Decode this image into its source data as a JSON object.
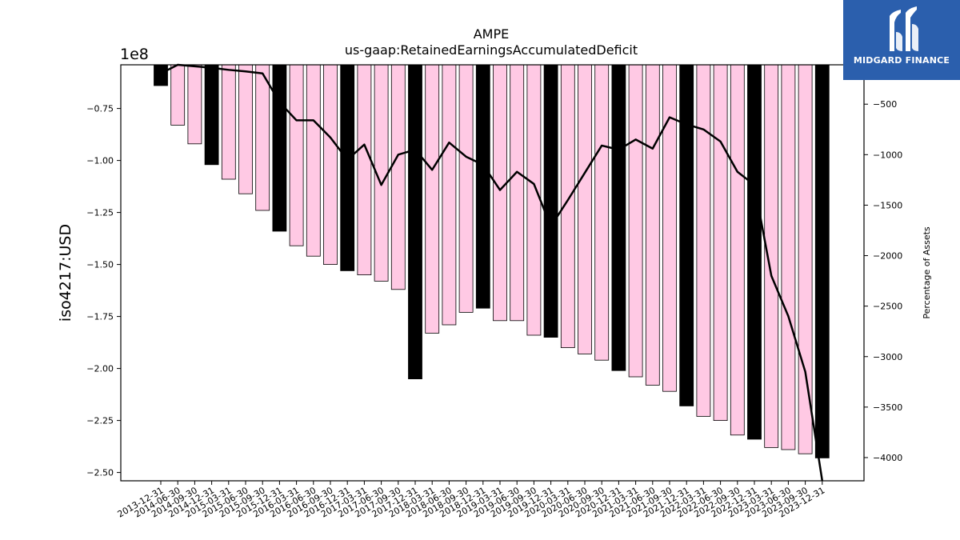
{
  "chart_data": {
    "type": "bar",
    "title": "AMPE",
    "subtitle": "us-gaap:RetainedEarningsAccumulatedDeficit",
    "ylabel": "iso4217:USD",
    "y_offset_label": "1e8",
    "y2label": "Percentage of Assets",
    "ylim": [
      -2.54,
      -0.54
    ],
    "y2lim": [
      -4230,
      -110
    ],
    "yticks": [
      -0.75,
      -1.0,
      -1.25,
      -1.5,
      -1.75,
      -2.0,
      -2.25,
      -2.5
    ],
    "y2ticks": [
      -500,
      -1000,
      -1500,
      -2000,
      -2500,
      -3000,
      -3500,
      -4000
    ],
    "categories": [
      "2013-12-31",
      "2014-06-30",
      "2014-09-30",
      "2014-12-31",
      "2015-03-31",
      "2015-06-30",
      "2015-09-30",
      "2015-12-31",
      "2016-03-31",
      "2016-06-30",
      "2016-09-30",
      "2016-12-31",
      "2017-03-31",
      "2017-06-30",
      "2017-09-30",
      "2017-12-31",
      "2018-03-31",
      "2018-06-30",
      "2018-09-30",
      "2018-12-31",
      "2019-03-31",
      "2019-06-30",
      "2019-09-30",
      "2019-12-31",
      "2020-03-31",
      "2020-06-30",
      "2020-09-30",
      "2020-12-31",
      "2021-03-31",
      "2021-06-30",
      "2021-09-30",
      "2021-12-31",
      "2022-03-31",
      "2022-06-30",
      "2022-09-30",
      "2022-12-31",
      "2023-03-31",
      "2023-06-30",
      "2023-09-30",
      "2023-12-31"
    ],
    "series": [
      {
        "type": "bar",
        "values": [
          -0.64,
          -0.83,
          -0.92,
          -1.02,
          -1.09,
          -1.16,
          -1.24,
          -1.34,
          -1.41,
          -1.46,
          -1.5,
          -1.53,
          -1.55,
          -1.58,
          -1.62,
          -2.05,
          -1.83,
          -1.79,
          -1.73,
          -1.71,
          -1.77,
          -1.77,
          -1.84,
          -1.85,
          -1.9,
          -1.93,
          -1.96,
          -2.01,
          -2.04,
          -2.08,
          -2.11,
          -2.18,
          -2.23,
          -2.25,
          -2.32,
          -2.34,
          -2.38,
          -2.39,
          -2.41,
          -2.43
        ],
        "highlight_color": "#000000",
        "base_color": "#ffc9e4",
        "highlight": [
          true,
          false,
          false,
          true,
          false,
          false,
          false,
          true,
          false,
          false,
          false,
          true,
          false,
          false,
          false,
          true,
          false,
          false,
          false,
          true,
          false,
          false,
          false,
          true,
          false,
          false,
          false,
          true,
          false,
          false,
          false,
          true,
          false,
          false,
          false,
          true,
          false,
          false,
          false,
          true
        ]
      },
      {
        "type": "line",
        "axis": "right",
        "color": "#000000",
        "values": [
          -195,
          -110,
          -125,
          -140,
          -160,
          -175,
          -195,
          -480,
          -660,
          -660,
          -830,
          -1050,
          -900,
          -1300,
          -1000,
          -950,
          -1150,
          -880,
          -1020,
          -1100,
          -1350,
          -1170,
          -1290,
          -1710,
          -1450,
          -1180,
          -910,
          -950,
          -850,
          -940,
          -630,
          -700,
          -750,
          -870,
          -1170,
          -1300,
          -2200,
          -2600,
          -3150,
          -4230
        ]
      }
    ]
  },
  "logo": {
    "text": "MIDGARD FINANCE"
  }
}
